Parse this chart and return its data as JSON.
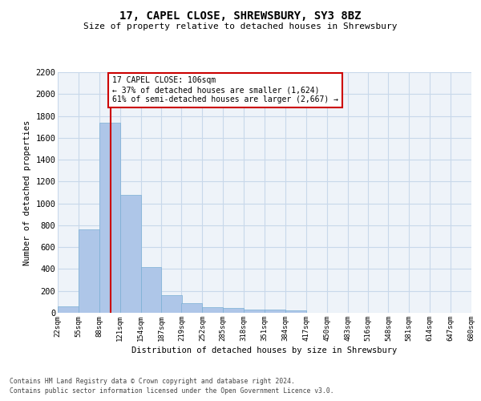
{
  "title": "17, CAPEL CLOSE, SHREWSBURY, SY3 8BZ",
  "subtitle": "Size of property relative to detached houses in Shrewsbury",
  "xlabel": "Distribution of detached houses by size in Shrewsbury",
  "ylabel": "Number of detached properties",
  "bin_edges": [
    22,
    55,
    88,
    121,
    154,
    187,
    219,
    252,
    285,
    318,
    351,
    384,
    417,
    450,
    483,
    516,
    548,
    581,
    614,
    647,
    680
  ],
  "bar_heights": [
    60,
    765,
    1740,
    1075,
    420,
    160,
    85,
    48,
    42,
    30,
    28,
    20,
    0,
    0,
    0,
    0,
    0,
    0,
    0,
    0
  ],
  "bar_color": "#aec6e8",
  "bar_edgecolor": "#7aafd4",
  "grid_color": "#c8d8ea",
  "bg_color": "#eef3f9",
  "vline_x": 106,
  "vline_color": "#cc0000",
  "annotation_text": "17 CAPEL CLOSE: 106sqm\n← 37% of detached houses are smaller (1,624)\n61% of semi-detached houses are larger (2,667) →",
  "annotation_box_color": "#cc0000",
  "annotation_bg": "white",
  "ylim": [
    0,
    2200
  ],
  "yticks": [
    0,
    200,
    400,
    600,
    800,
    1000,
    1200,
    1400,
    1600,
    1800,
    2000,
    2200
  ],
  "footer_line1": "Contains HM Land Registry data © Crown copyright and database right 2024.",
  "footer_line2": "Contains public sector information licensed under the Open Government Licence v3.0."
}
